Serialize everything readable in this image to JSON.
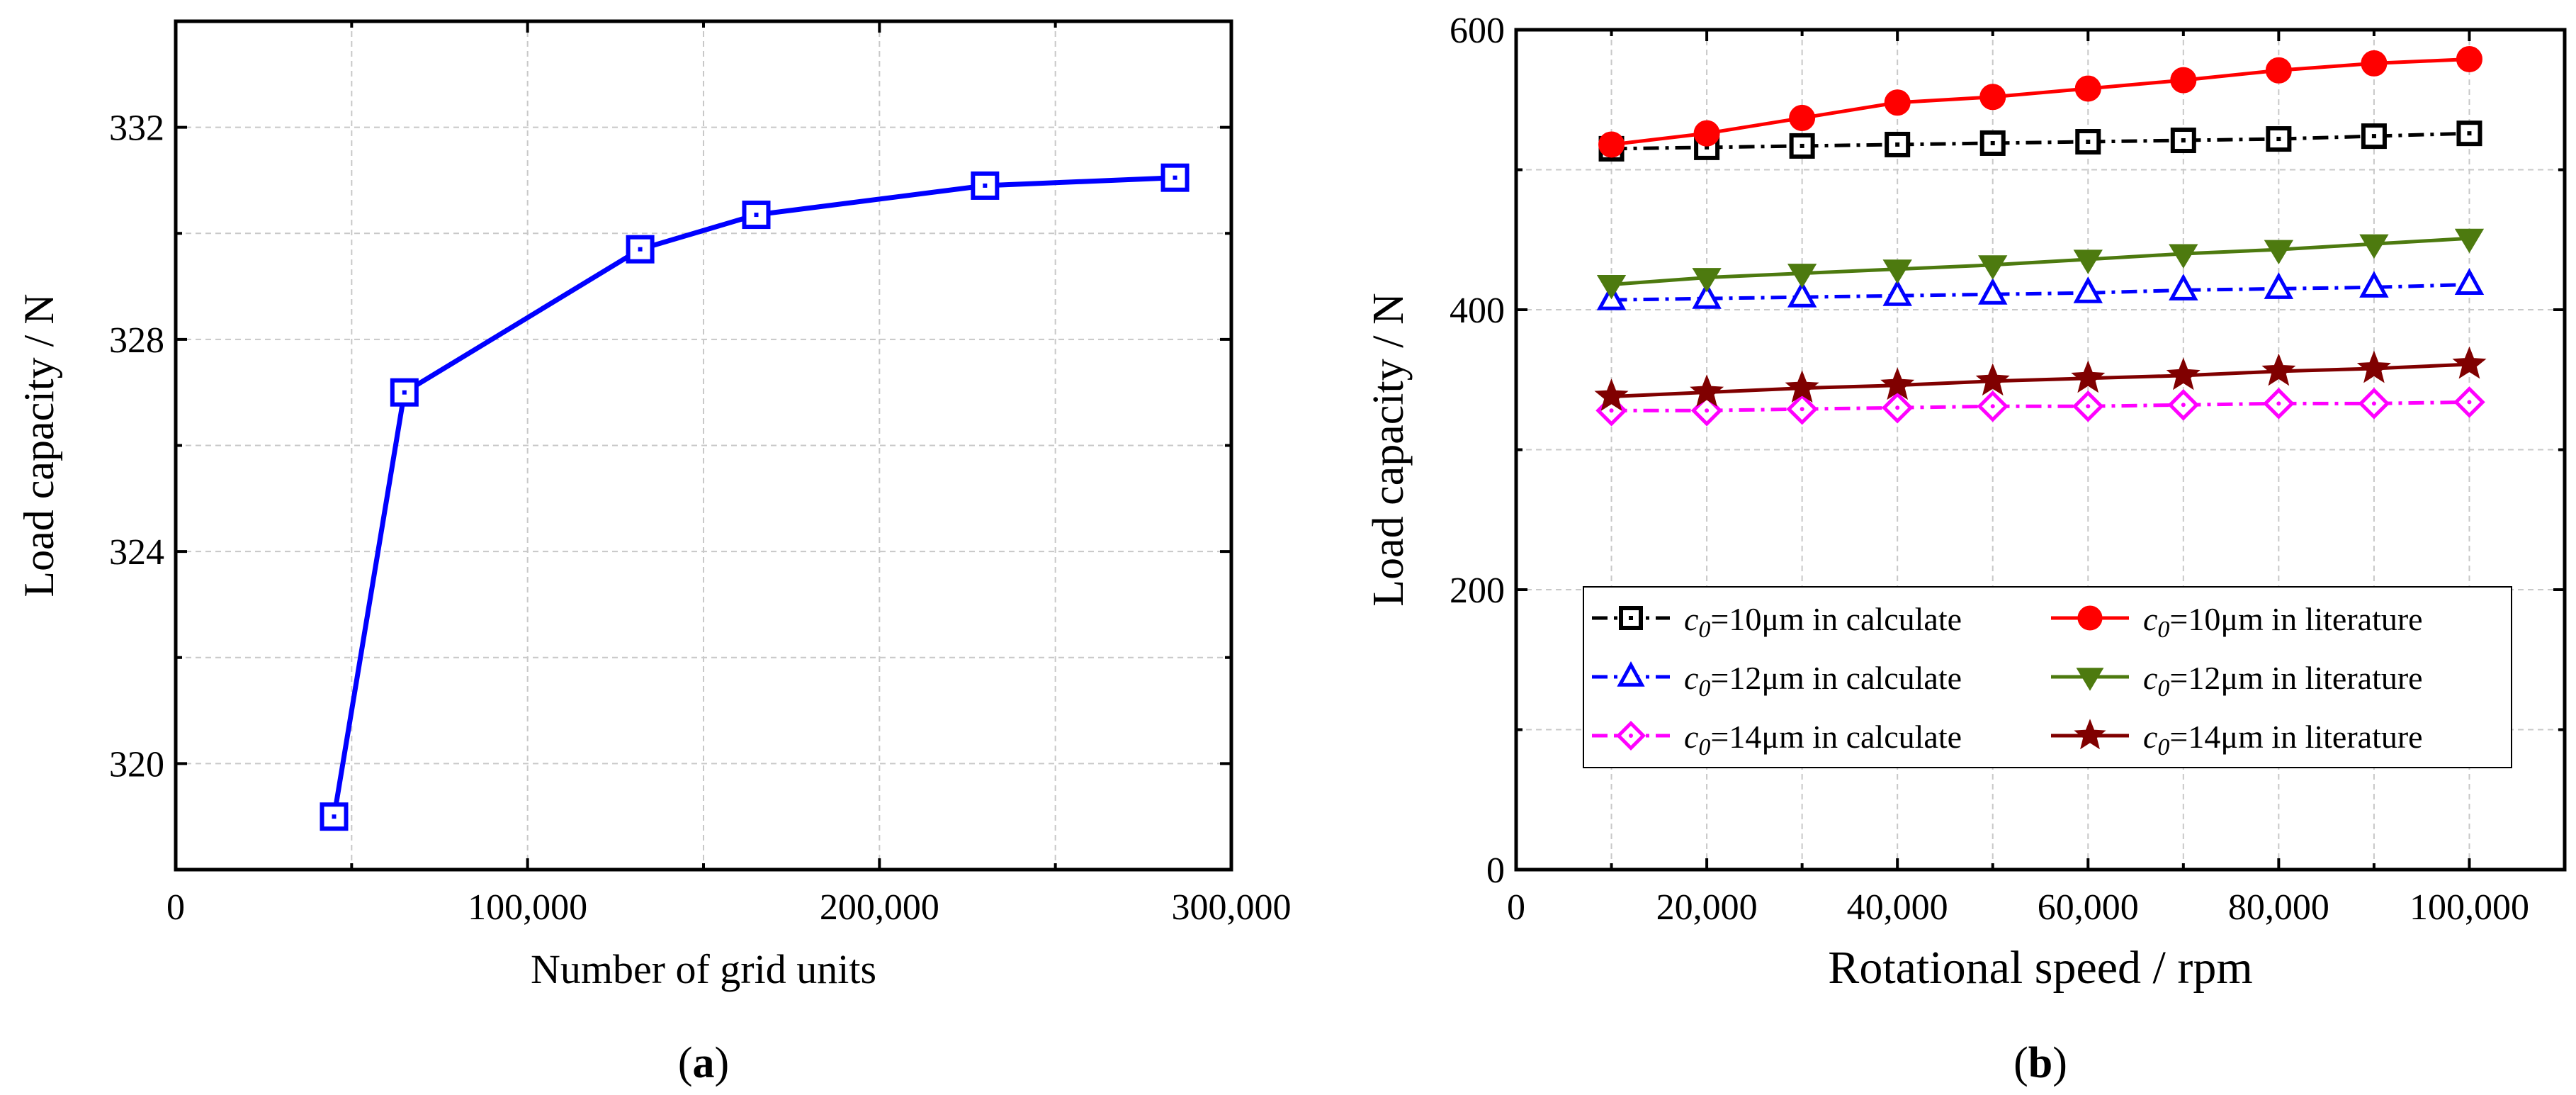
{
  "chart_data": [
    {
      "type": "line",
      "panel_label": "(a)",
      "panel_letter": "a",
      "xlabel": "Number of grid units",
      "ylabel": "Load capacity / N",
      "xlim": [
        0,
        300000
      ],
      "ylim": [
        318,
        334
      ],
      "x_ticks": [
        0,
        100000,
        200000,
        300000
      ],
      "x_tick_labels": [
        "0",
        "100,000",
        "200,000",
        "300,000"
      ],
      "y_ticks": [
        320,
        324,
        328,
        332
      ],
      "y_tick_labels": [
        "320",
        "324",
        "328",
        "332"
      ],
      "x_grid": [
        50000,
        100000,
        150000,
        200000,
        250000
      ],
      "y_grid": [
        320,
        322,
        324,
        326,
        328,
        330,
        332
      ],
      "grid": true,
      "series": [
        {
          "name": "Load capacity",
          "color": "#0000ff",
          "marker": "square",
          "line_style": "solid",
          "x": [
            45000,
            65000,
            132000,
            165000,
            230000,
            284000
          ],
          "y": [
            319.0,
            327.0,
            329.7,
            330.35,
            330.9,
            331.05
          ]
        }
      ]
    },
    {
      "type": "line",
      "panel_label": "(b)",
      "panel_letter": "b",
      "xlabel": "Rotational speed / rpm",
      "ylabel": "Load capacity / N",
      "xlim": [
        0,
        110000
      ],
      "ylim": [
        0,
        600
      ],
      "x_ticks": [
        0,
        20000,
        40000,
        60000,
        80000,
        100000
      ],
      "x_tick_labels": [
        "0",
        "20,000",
        "40,000",
        "60,000",
        "80,000",
        "100,000"
      ],
      "y_ticks": [
        0,
        200,
        400,
        600
      ],
      "y_tick_labels": [
        "0",
        "200",
        "400",
        "600"
      ],
      "x_grid": [
        10000,
        20000,
        30000,
        40000,
        50000,
        60000,
        70000,
        80000,
        90000,
        100000
      ],
      "y_grid": [
        100,
        200,
        300,
        400,
        500
      ],
      "grid": true,
      "legend_position": "lower-center",
      "x": [
        10000,
        20000,
        30000,
        40000,
        50000,
        60000,
        70000,
        80000,
        90000,
        100000
      ],
      "series": [
        {
          "name": "c0=10μm in calculate",
          "var": "c",
          "sub": "0",
          "rest": "=10μm in calculate",
          "color": "#000000",
          "marker": "square",
          "line_style": "dashdot",
          "values": [
            515,
            516,
            517,
            518,
            519,
            520,
            521,
            522,
            524,
            526
          ]
        },
        {
          "name": "c0=10μm in literature",
          "var": "c",
          "sub": "0",
          "rest": "=10μm in literature",
          "color": "#ff0000",
          "marker": "circle",
          "line_style": "solid",
          "values": [
            518,
            526,
            537,
            548,
            552,
            558,
            564,
            571,
            576,
            579
          ]
        },
        {
          "name": "c0=12μm in calculate",
          "var": "c",
          "sub": "0",
          "rest": "=12μm in calculate",
          "color": "#0000ff",
          "marker": "triangle-up",
          "line_style": "dashdot",
          "values": [
            407,
            408,
            409,
            410,
            411,
            412,
            414,
            415,
            416,
            418
          ]
        },
        {
          "name": "c0=12μm in literature",
          "var": "c",
          "sub": "0",
          "rest": "=12μm in literature",
          "color": "#4d7a0f",
          "marker": "triangle-down",
          "line_style": "solid",
          "values": [
            418,
            423,
            426,
            429,
            432,
            436,
            440,
            443,
            447,
            451
          ]
        },
        {
          "name": "c0=14μm in calculate",
          "var": "c",
          "sub": "0",
          "rest": "=14μm in calculate",
          "color": "#ff00ff",
          "marker": "diamond",
          "line_style": "dashdot",
          "values": [
            328,
            328,
            329,
            330,
            331,
            331,
            332,
            333,
            333,
            334
          ]
        },
        {
          "name": "c0=14μm in literature",
          "var": "c",
          "sub": "0",
          "rest": "=14μm in literature",
          "color": "#800000",
          "marker": "star",
          "line_style": "solid",
          "values": [
            338,
            341,
            344,
            346,
            349,
            351,
            353,
            356,
            358,
            361
          ]
        }
      ]
    }
  ]
}
